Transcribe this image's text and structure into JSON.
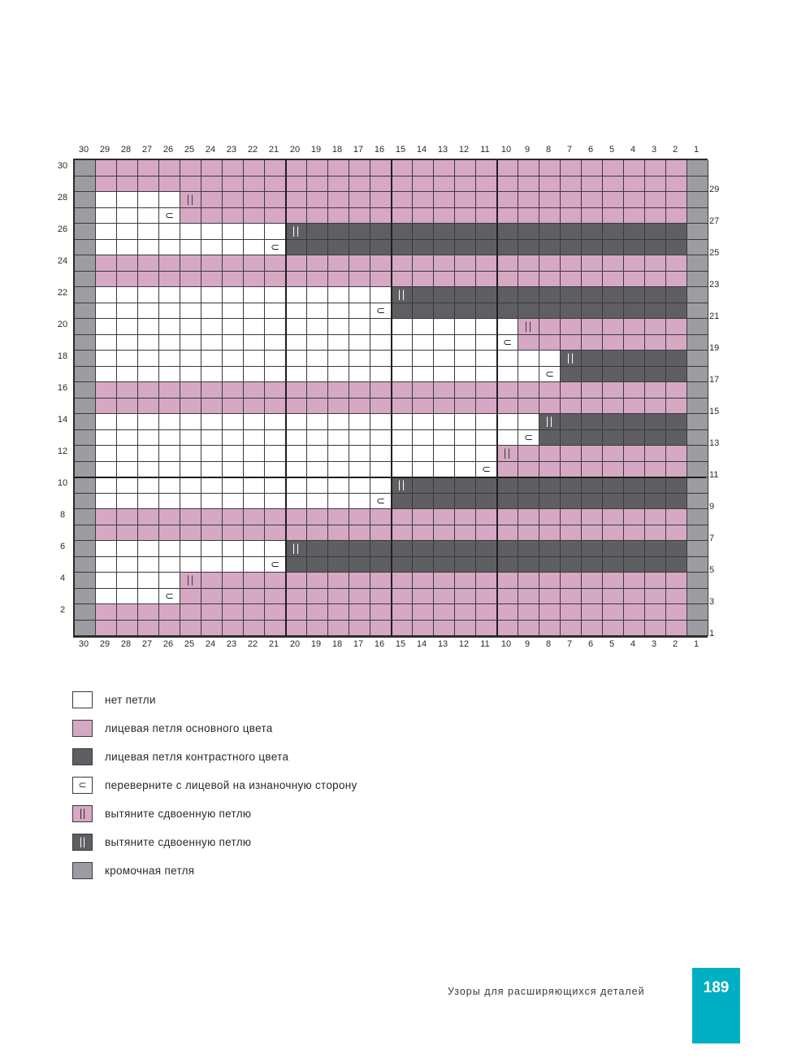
{
  "chart": {
    "columns": [
      "30",
      "29",
      "28",
      "27",
      "26",
      "25",
      "24",
      "23",
      "22",
      "21",
      "20",
      "19",
      "18",
      "17",
      "16",
      "15",
      "14",
      "13",
      "12",
      "11",
      "10",
      "9",
      "8",
      "7",
      "6",
      "5",
      "4",
      "3",
      "2",
      "1"
    ],
    "left_row_labels": [
      "30",
      "28",
      "26",
      "24",
      "22",
      "20",
      "18",
      "16",
      "14",
      "12",
      "10",
      "8",
      "6",
      "4",
      "2"
    ],
    "right_row_labels": [
      "29",
      "27",
      "25",
      "23",
      "21",
      "19",
      "17",
      "15",
      "13",
      "11",
      "9",
      "7",
      "5",
      "3",
      "1"
    ],
    "rows": [
      {
        "row": 30,
        "white_cols": 0,
        "symbol": null,
        "tail": "pink"
      },
      {
        "row": 29,
        "white_cols": 0,
        "symbol": null,
        "tail": "pink"
      },
      {
        "row": 28,
        "white_cols": 5,
        "symbol": "slip",
        "tail": "pink"
      },
      {
        "row": 27,
        "white_cols": 5,
        "symbol": "turn",
        "tail": "pink"
      },
      {
        "row": 26,
        "white_cols": 10,
        "symbol": "slip",
        "tail": "dark"
      },
      {
        "row": 25,
        "white_cols": 10,
        "symbol": "turn",
        "tail": "dark"
      },
      {
        "row": 24,
        "white_cols": 0,
        "symbol": null,
        "tail": "pink"
      },
      {
        "row": 23,
        "white_cols": 0,
        "symbol": null,
        "tail": "pink"
      },
      {
        "row": 22,
        "white_cols": 15,
        "symbol": "slip",
        "tail": "dark"
      },
      {
        "row": 21,
        "white_cols": 15,
        "symbol": "turn",
        "tail": "dark"
      },
      {
        "row": 20,
        "white_cols": 21,
        "symbol": "slip",
        "tail": "pink"
      },
      {
        "row": 19,
        "white_cols": 21,
        "symbol": "turn",
        "tail": "pink"
      },
      {
        "row": 18,
        "white_cols": 23,
        "symbol": "slip",
        "tail": "dark"
      },
      {
        "row": 17,
        "white_cols": 23,
        "symbol": "turn",
        "tail": "dark"
      },
      {
        "row": 16,
        "white_cols": 0,
        "symbol": null,
        "tail": "pink"
      },
      {
        "row": 15,
        "white_cols": 0,
        "symbol": null,
        "tail": "pink"
      },
      {
        "row": 14,
        "white_cols": 22,
        "symbol": "slip",
        "tail": "dark"
      },
      {
        "row": 13,
        "white_cols": 22,
        "symbol": "turn",
        "tail": "dark"
      },
      {
        "row": 12,
        "white_cols": 20,
        "symbol": "slip",
        "tail": "pink"
      },
      {
        "row": 11,
        "white_cols": 20,
        "symbol": "turn",
        "tail": "pink"
      },
      {
        "row": 10,
        "white_cols": 15,
        "symbol": "slip",
        "tail": "dark"
      },
      {
        "row": 9,
        "white_cols": 15,
        "symbol": "turn",
        "tail": "dark"
      },
      {
        "row": 8,
        "white_cols": 0,
        "symbol": null,
        "tail": "pink"
      },
      {
        "row": 7,
        "white_cols": 0,
        "symbol": null,
        "tail": "pink"
      },
      {
        "row": 6,
        "white_cols": 10,
        "symbol": "slip",
        "tail": "dark"
      },
      {
        "row": 5,
        "white_cols": 10,
        "symbol": "turn",
        "tail": "dark"
      },
      {
        "row": 4,
        "white_cols": 5,
        "symbol": "slip",
        "tail": "pink"
      },
      {
        "row": 3,
        "white_cols": 5,
        "symbol": "turn",
        "tail": "pink"
      },
      {
        "row": 2,
        "white_cols": 0,
        "symbol": null,
        "tail": "pink"
      },
      {
        "row": 1,
        "white_cols": 0,
        "symbol": null,
        "tail": "pink"
      }
    ],
    "symbols": {
      "slip": "||",
      "turn": "⊂"
    },
    "colors": {
      "empty": "#ffffff",
      "pink": "#d6a8c4",
      "dark": "#5f5e63",
      "edge": "#9d9ca2"
    }
  },
  "legend": [
    {
      "swatch": "empty",
      "symbol": "",
      "label": "нет петли"
    },
    {
      "swatch": "pink",
      "symbol": "",
      "label": "лицевая петля основного цвета"
    },
    {
      "swatch": "dark",
      "symbol": "",
      "label": "лицевая петля контрастного цвета"
    },
    {
      "swatch": "empty",
      "symbol": "⊂",
      "label": "переверните с лицевой на изнаночную сторону"
    },
    {
      "swatch": "pink",
      "symbol": "||",
      "label": "вытяните сдвоенную петлю"
    },
    {
      "swatch": "dark",
      "symbol": "||",
      "label": "вытяните сдвоенную петлю"
    },
    {
      "swatch": "edge",
      "symbol": "",
      "label": "кромочная петля"
    }
  ],
  "footer": {
    "section_title": "Узоры для расширяющихся деталей",
    "page_number": "189",
    "tab_color": "#00afc4"
  }
}
